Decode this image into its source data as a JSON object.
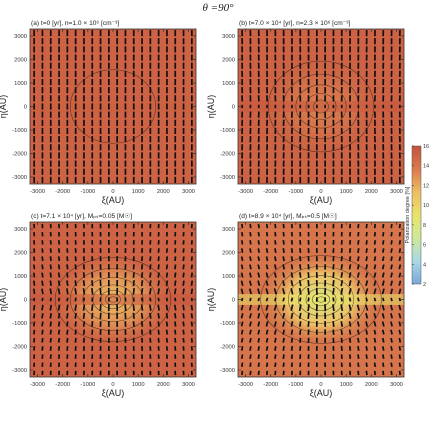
{
  "figure": {
    "title": "θ =90°",
    "colorbar": {
      "label": "Polarization degree [%]",
      "ticks": [
        "16",
        "14",
        "12",
        "10",
        "8",
        "6",
        "4",
        "2"
      ],
      "range": [
        2,
        16
      ],
      "colors": [
        "#7aa7d6",
        "#a9d8e6",
        "#cfe89a",
        "#e8e46a",
        "#eebc66",
        "#d97a4e",
        "#c4513c"
      ]
    }
  },
  "chart_data": [
    {
      "type": "heatmap",
      "title": "(a) t=0 [yr], n=1.0 × 10⁶ [cm⁻³]",
      "xlabel": "ξ(AU)",
      "ylabel": "η(AU)",
      "xlim": [
        -3300,
        3300
      ],
      "ylim": [
        -3300,
        3300
      ],
      "xticks": [
        -3000,
        -2000,
        -1000,
        0,
        1000,
        2000,
        3000
      ],
      "yticks": [
        -3000,
        -2000,
        -1000,
        0,
        1000,
        2000,
        3000
      ],
      "field": {
        "background_percent": 15,
        "peak_percent": 15,
        "disk_percent": 15
      },
      "polarization_vectors": "uniform vertical",
      "contour_radii_au": [
        1700
      ]
    },
    {
      "type": "heatmap",
      "title": "(b) t=7.0 × 10⁴ [yr], n=2.3 × 10⁶ [cm⁻³]",
      "xlabel": "ξ(AU)",
      "ylabel": "η(AU)",
      "xlim": [
        -3300,
        3300
      ],
      "ylim": [
        -3300,
        3300
      ],
      "xticks": [
        -3000,
        -2000,
        -1000,
        0,
        1000,
        2000,
        3000
      ],
      "yticks": [
        -3000,
        -2000,
        -1000,
        0,
        1000,
        2000,
        3000
      ],
      "field": {
        "background_percent": 15,
        "peak_percent": 13.5,
        "disk_percent": 15.5
      },
      "polarization_vectors": "vertical, slightly pinched near center",
      "contour_radii_au": [
        300,
        600,
        1000,
        1500,
        2100
      ]
    },
    {
      "type": "heatmap",
      "title": "(c) t=7.1 × 10⁴ [yr], Mₚₛ=0.05 [M☉]",
      "xlabel": "ξ(AU)",
      "ylabel": "η(AU)",
      "xlim": [
        -3300,
        3300
      ],
      "ylim": [
        -3300,
        3300
      ],
      "xticks": [
        -3000,
        -2000,
        -1000,
        0,
        1000,
        2000,
        3000
      ],
      "yticks": [
        -3000,
        -2000,
        -1000,
        0,
        1000,
        2000,
        3000
      ],
      "field": {
        "background_percent": 15,
        "peak_percent": 11,
        "disk_percent": 15.5
      },
      "polarization_vectors": "hourglass",
      "contour_radii_au": [
        150,
        300,
        500,
        800,
        1200,
        1700,
        2300
      ]
    },
    {
      "type": "heatmap",
      "title": "(d) t=8.9 × 10⁴ [yr], Mₚₛ=0.5 [M☉]",
      "xlabel": "ξ(AU)",
      "ylabel": "η(AU)",
      "xlim": [
        -3300,
        3300
      ],
      "ylim": [
        -3300,
        3300
      ],
      "xticks": [
        -3000,
        -2000,
        -1000,
        0,
        1000,
        2000,
        3000
      ],
      "yticks": [
        -3000,
        -2000,
        -1000,
        0,
        1000,
        2000,
        3000
      ],
      "field": {
        "background_percent": 14,
        "peak_percent": 8,
        "disk_percent": 9
      },
      "polarization_vectors": "strong hourglass",
      "contour_radii_au": [
        150,
        350,
        600,
        900,
        1300,
        1800,
        2400
      ]
    }
  ]
}
